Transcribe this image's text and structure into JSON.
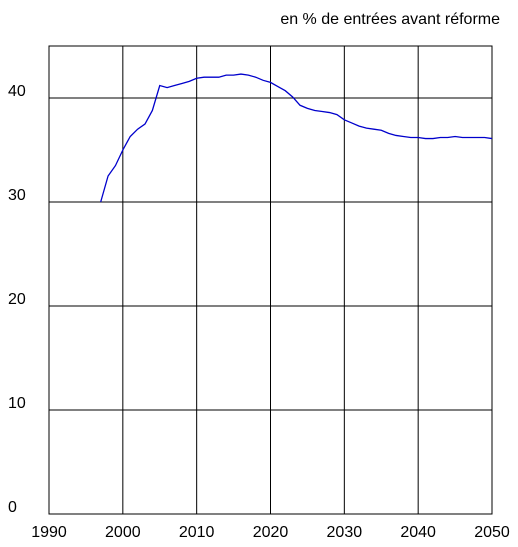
{
  "chart_data": {
    "type": "line",
    "subtitle": "en % de entrées avant réforme",
    "x": [
      1997,
      1998,
      1999,
      2000,
      2001,
      2002,
      2003,
      2004,
      2005,
      2006,
      2007,
      2008,
      2009,
      2010,
      2011,
      2012,
      2013,
      2014,
      2015,
      2016,
      2017,
      2018,
      2019,
      2020,
      2021,
      2022,
      2023,
      2024,
      2025,
      2026,
      2027,
      2028,
      2029,
      2030,
      2031,
      2032,
      2033,
      2034,
      2035,
      2036,
      2037,
      2038,
      2039,
      2040,
      2041,
      2042,
      2043,
      2044,
      2045,
      2046,
      2047,
      2048,
      2049,
      2050
    ],
    "series": [
      {
        "color": "#0000cc",
        "values": [
          30,
          32.5,
          33.5,
          35,
          36.3,
          37,
          37.5,
          38.8,
          41.2,
          41,
          41.2,
          41.4,
          41.6,
          41.9,
          42,
          42,
          42,
          42.2,
          42.2,
          42.3,
          42.2,
          42,
          41.7,
          41.5,
          41.1,
          40.7,
          40.1,
          39.3,
          39,
          38.8,
          38.7,
          38.6,
          38.4,
          37.9,
          37.6,
          37.3,
          37.1,
          37,
          36.9,
          36.6,
          36.4,
          36.3,
          36.2,
          36.2,
          36.1,
          36.1,
          36.2,
          36.2,
          36.3,
          36.2,
          36.2,
          36.2,
          36.2,
          36.1
        ]
      }
    ],
    "xlim": [
      1990,
      2050
    ],
    "xticks": [
      1990,
      2000,
      2010,
      2020,
      2030,
      2040,
      2050
    ],
    "ylim": [
      0,
      45
    ],
    "yticks": [
      0,
      10,
      20,
      30,
      40
    ],
    "grid": true
  }
}
